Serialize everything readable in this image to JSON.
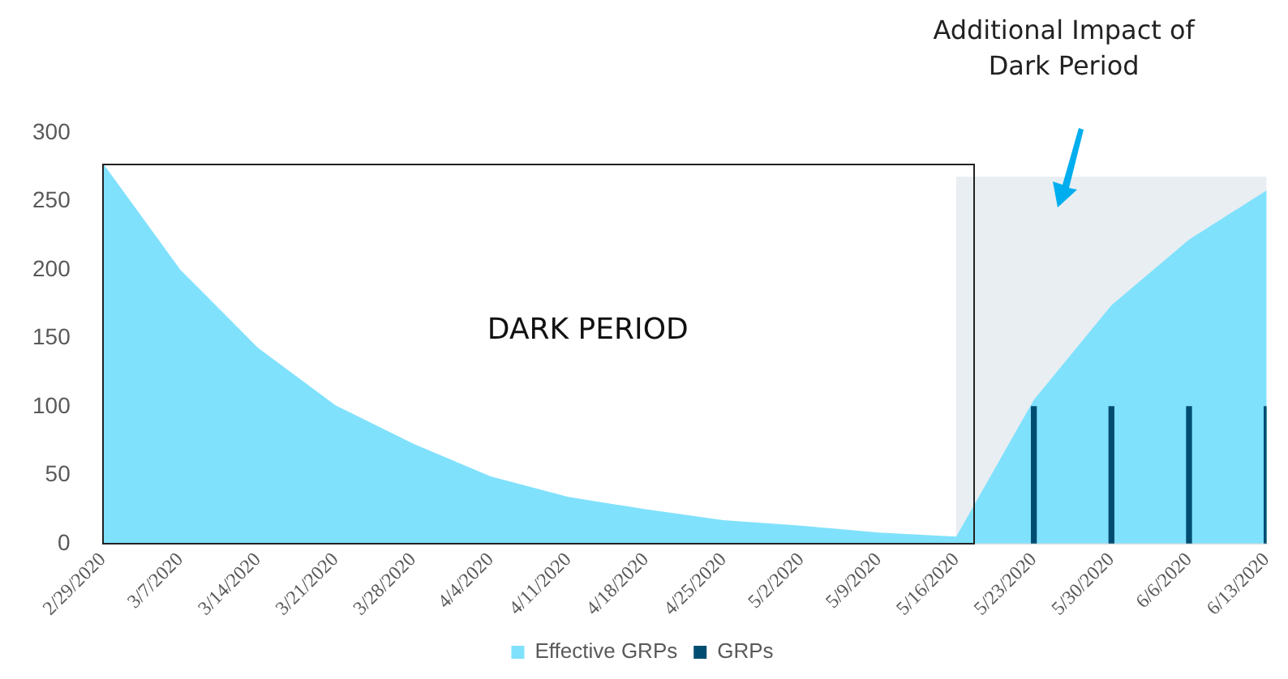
{
  "chart_data": {
    "type": "area",
    "categories": [
      "2/29/2020",
      "3/7/2020",
      "3/14/2020",
      "3/21/2020",
      "3/28/2020",
      "4/4/2020",
      "4/11/2020",
      "4/18/2020",
      "4/25/2020",
      "5/2/2020",
      "5/9/2020",
      "5/16/2020",
      "5/23/2020",
      "5/30/2020",
      "6/6/2020",
      "6/13/2020"
    ],
    "ylim": [
      0,
      300
    ],
    "yticks": [
      0,
      50,
      100,
      150,
      200,
      250,
      300
    ],
    "grid": false,
    "legend": "bottom",
    "series": [
      {
        "color": "#e8eef2",
        "values": [
          null,
          null,
          null,
          null,
          null,
          null,
          null,
          null,
          null,
          null,
          null,
          268,
          268,
          268,
          268,
          268
        ]
      },
      {
        "name": "Effective GRPs",
        "color": "#80e1fd",
        "values": [
          278,
          200,
          143,
          101,
          73,
          49,
          34,
          25,
          17,
          13,
          8,
          5,
          105,
          174,
          222,
          258
        ]
      },
      {
        "name": "GRPs",
        "type": "bar",
        "color": "#004d71",
        "values": [
          null,
          null,
          null,
          null,
          null,
          null,
          null,
          null,
          null,
          null,
          null,
          null,
          100,
          100,
          100,
          100
        ]
      }
    ],
    "annotations": [
      "DARK PERIOD",
      "Additional Impact of Dark Period"
    ]
  }
}
